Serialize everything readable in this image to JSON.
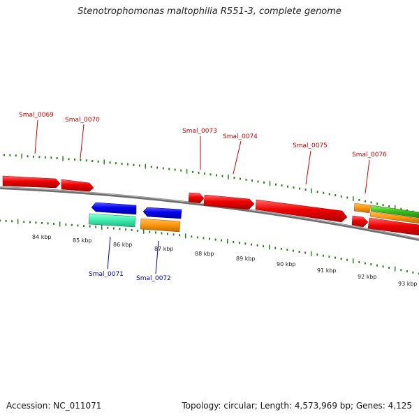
{
  "title": "Stenotrophomonas maltophilia R551-3, complete genome",
  "footer": {
    "accession": "Accession: NC_011071",
    "summary": "Topology: circular; Length: 4,573,969 bp; Genes: 4,125"
  },
  "colors": {
    "backbone": "#888888",
    "tick": "#2e7d1e",
    "label_forward": "#cc0000",
    "label_reverse": "#0000aa"
  },
  "kbp_labels": [
    "84 kbp",
    "85 kbp",
    "86 kbp",
    "87 kbp",
    "88 kbp",
    "89 kbp",
    "90 kbp",
    "91 kbp",
    "92 kbp",
    "93 kbp"
  ],
  "forward_labels": [
    "Smal_0069",
    "Smal_0070",
    "Smal_0073",
    "Smal_0074",
    "Smal_0075",
    "Smal_0076"
  ],
  "reverse_labels": [
    "Smal_0071",
    "Smal_0072"
  ],
  "features": [
    {
      "color": "red",
      "strand": "forward"
    },
    {
      "color": "red",
      "strand": "forward"
    },
    {
      "color": "red",
      "strand": "forward"
    },
    {
      "color": "red",
      "strand": "forward"
    },
    {
      "color": "red",
      "strand": "forward"
    },
    {
      "color": "orange",
      "strand": "forward"
    },
    {
      "color": "green",
      "strand": "forward"
    },
    {
      "color": "red",
      "strand": "forward"
    },
    {
      "color": "orange",
      "strand": "forward"
    },
    {
      "color": "red",
      "strand": "forward"
    },
    {
      "color": "blue",
      "strand": "reverse"
    },
    {
      "color": "blue",
      "strand": "reverse"
    },
    {
      "color": "aquamarine",
      "strand": "reverse"
    },
    {
      "color": "orange",
      "strand": "reverse"
    }
  ]
}
